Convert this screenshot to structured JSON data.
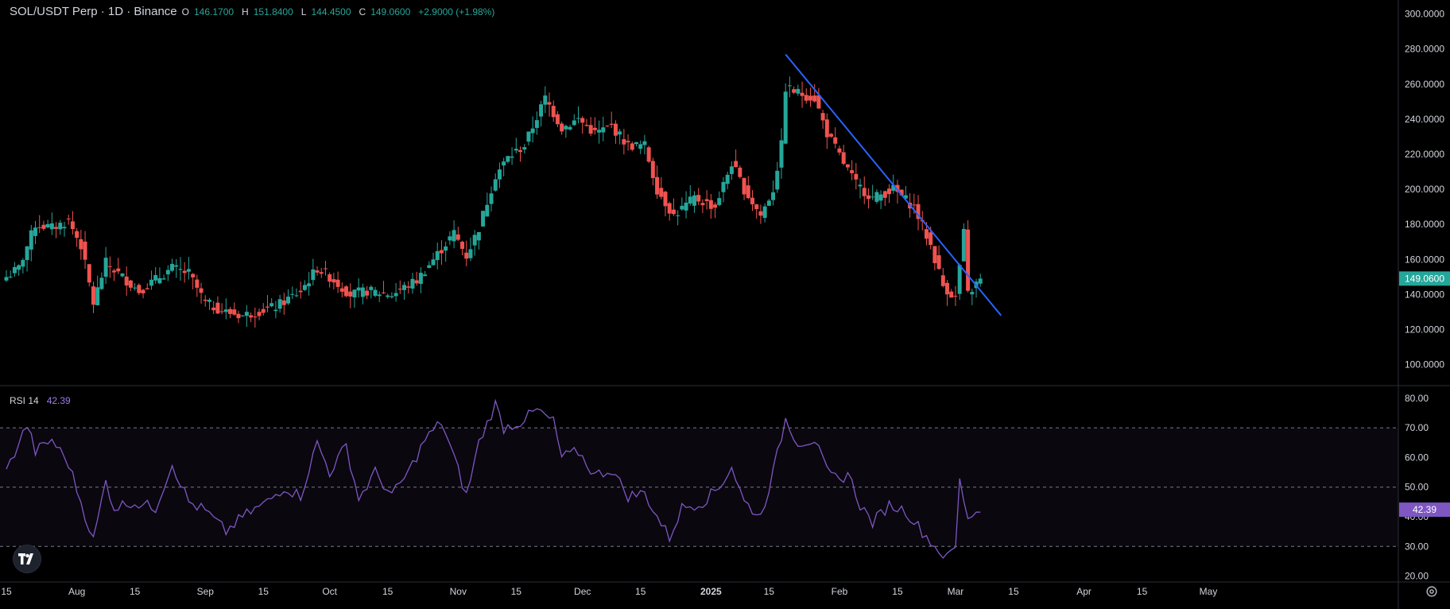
{
  "header": {
    "symbol": "SOL/USDT Perp · 1D · Binance",
    "open_label": "O",
    "open": "146.1700",
    "high_label": "H",
    "high": "151.8400",
    "low_label": "L",
    "low": "144.4500",
    "close_label": "C",
    "close": "149.0600",
    "change": "+2.9000 (+1.98%)"
  },
  "rsi": {
    "label": "RSI 14",
    "value": "42.39"
  },
  "price_badge": "149.0600",
  "rsi_badge": "42.39",
  "colors": {
    "up": "#26a69a",
    "down": "#ef5350",
    "rsi": "#7e57c2",
    "trendline": "#2962ff",
    "badge_price": "#26a69a",
    "badge_rsi": "#7e57c2"
  },
  "icons": {
    "logo": "tradingview-logo-icon",
    "settings": "gear-icon"
  },
  "chart_data": [
    {
      "type": "candlestick",
      "title": "SOL/USDT Perp · 1D · Binance",
      "ylim": [
        88,
        308
      ],
      "y_ticks": [
        "300.0000",
        "280.0000",
        "260.0000",
        "240.0000",
        "220.0000",
        "200.0000",
        "180.0000",
        "160.0000",
        "140.0000",
        "120.0000",
        "100.0000"
      ],
      "y_tick_values": [
        300,
        280,
        260,
        240,
        220,
        200,
        180,
        160,
        140,
        120,
        100
      ],
      "x_ticks": [
        "15",
        "Aug",
        "15",
        "Sep",
        "15",
        "Oct",
        "15",
        "Nov",
        "15",
        "Dec",
        "15",
        "2025",
        "15",
        "Feb",
        "15",
        "Mar",
        "15",
        "Apr",
        "15",
        "May"
      ],
      "x_tick_dates": [
        "2024-07-15",
        "2024-08-01",
        "2024-08-15",
        "2024-09-01",
        "2024-09-15",
        "2024-10-01",
        "2024-10-15",
        "2024-11-01",
        "2024-11-15",
        "2024-12-01",
        "2024-12-15",
        "2025-01-01",
        "2025-01-15",
        "2025-02-01",
        "2025-02-15",
        "2025-03-01",
        "2025-03-15",
        "2025-04-01",
        "2025-04-15",
        "2025-05-01"
      ],
      "x_range": [
        "2024-07-15",
        "2025-05-01"
      ],
      "series_anchors": [
        [
          "2024-07-15",
          150
        ],
        [
          "2024-07-18",
          155
        ],
        [
          "2024-07-22",
          180
        ],
        [
          "2024-07-26",
          178
        ],
        [
          "2024-07-30",
          182
        ],
        [
          "2024-08-02",
          168
        ],
        [
          "2024-08-05",
          135
        ],
        [
          "2024-08-08",
          158
        ],
        [
          "2024-08-12",
          150
        ],
        [
          "2024-08-16",
          142
        ],
        [
          "2024-08-24",
          155
        ],
        [
          "2024-08-28",
          152
        ],
        [
          "2024-09-01",
          135
        ],
        [
          "2024-09-06",
          130
        ],
        [
          "2024-09-10",
          128
        ],
        [
          "2024-09-18",
          133
        ],
        [
          "2024-09-24",
          142
        ],
        [
          "2024-09-28",
          155
        ],
        [
          "2024-10-01",
          150
        ],
        [
          "2024-10-06",
          140
        ],
        [
          "2024-10-10",
          142
        ],
        [
          "2024-10-16",
          140
        ],
        [
          "2024-10-22",
          148
        ],
        [
          "2024-10-27",
          163
        ],
        [
          "2024-10-31",
          175
        ],
        [
          "2024-11-03",
          162
        ],
        [
          "2024-11-06",
          178
        ],
        [
          "2024-11-10",
          208
        ],
        [
          "2024-11-13",
          218
        ],
        [
          "2024-11-17",
          225
        ],
        [
          "2024-11-22",
          252
        ],
        [
          "2024-11-26",
          235
        ],
        [
          "2024-11-30",
          240
        ],
        [
          "2024-12-04",
          232
        ],
        [
          "2024-12-08",
          236
        ],
        [
          "2024-12-12",
          225
        ],
        [
          "2024-12-16",
          225
        ],
        [
          "2024-12-19",
          200
        ],
        [
          "2024-12-23",
          185
        ],
        [
          "2024-12-28",
          195
        ],
        [
          "2025-01-02",
          190
        ],
        [
          "2025-01-06",
          215
        ],
        [
          "2025-01-09",
          200
        ],
        [
          "2025-01-13",
          185
        ],
        [
          "2025-01-16",
          200
        ],
        [
          "2025-01-18",
          225
        ],
        [
          "2025-01-19",
          258
        ],
        [
          "2025-01-22",
          255
        ],
        [
          "2025-01-26",
          252
        ],
        [
          "2025-01-29",
          232
        ],
        [
          "2025-02-02",
          215
        ],
        [
          "2025-02-05",
          203
        ],
        [
          "2025-02-09",
          195
        ],
        [
          "2025-02-14",
          200
        ],
        [
          "2025-02-19",
          190
        ],
        [
          "2025-02-23",
          168
        ],
        [
          "2025-02-26",
          145
        ],
        [
          "2025-03-01",
          138
        ],
        [
          "2025-03-03",
          175
        ],
        [
          "2025-03-04",
          140
        ],
        [
          "2025-03-07",
          149
        ]
      ],
      "last": {
        "open": 146.17,
        "high": 151.84,
        "low": 144.45,
        "close": 149.06
      },
      "trendline": {
        "start": [
          "2025-01-19",
          277
        ],
        "end": [
          "2025-03-12",
          128
        ]
      }
    },
    {
      "type": "line",
      "title": "RSI 14",
      "ylim": [
        18,
        84
      ],
      "y_ticks": [
        "80.00",
        "70.00",
        "60.00",
        "50.00",
        "40.00",
        "30.00",
        "20.00"
      ],
      "y_tick_values": [
        80,
        70,
        60,
        50,
        40,
        30,
        20
      ],
      "bands": [
        70,
        50,
        30
      ],
      "series_anchors": [
        [
          "2024-07-15",
          55
        ],
        [
          "2024-07-18",
          65
        ],
        [
          "2024-07-20",
          71
        ],
        [
          "2024-07-22",
          62
        ],
        [
          "2024-07-26",
          66
        ],
        [
          "2024-07-30",
          58
        ],
        [
          "2024-08-05",
          32
        ],
        [
          "2024-08-08",
          52
        ],
        [
          "2024-08-10",
          43
        ],
        [
          "2024-08-14",
          45
        ],
        [
          "2024-08-20",
          43
        ],
        [
          "2024-08-24",
          58
        ],
        [
          "2024-08-28",
          45
        ],
        [
          "2024-09-01",
          42
        ],
        [
          "2024-09-06",
          35
        ],
        [
          "2024-09-10",
          40
        ],
        [
          "2024-09-16",
          45
        ],
        [
          "2024-09-20",
          50
        ],
        [
          "2024-09-24",
          47
        ],
        [
          "2024-09-28",
          65
        ],
        [
          "2024-10-01",
          55
        ],
        [
          "2024-10-05",
          64
        ],
        [
          "2024-10-08",
          46
        ],
        [
          "2024-10-12",
          55
        ],
        [
          "2024-10-16",
          47
        ],
        [
          "2024-10-20",
          55
        ],
        [
          "2024-10-24",
          66
        ],
        [
          "2024-10-28",
          72
        ],
        [
          "2024-10-31",
          60
        ],
        [
          "2024-11-03",
          47
        ],
        [
          "2024-11-06",
          65
        ],
        [
          "2024-11-10",
          78
        ],
        [
          "2024-11-12",
          70
        ],
        [
          "2024-11-16",
          72
        ],
        [
          "2024-11-20",
          76
        ],
        [
          "2024-11-24",
          72
        ],
        [
          "2024-11-26",
          60
        ],
        [
          "2024-11-30",
          62
        ],
        [
          "2024-12-04",
          54
        ],
        [
          "2024-12-08",
          56
        ],
        [
          "2024-12-12",
          47
        ],
        [
          "2024-12-16",
          48
        ],
        [
          "2024-12-19",
          40
        ],
        [
          "2024-12-22",
          33
        ],
        [
          "2024-12-25",
          43
        ],
        [
          "2024-12-30",
          45
        ],
        [
          "2025-01-03",
          50
        ],
        [
          "2025-01-06",
          57
        ],
        [
          "2025-01-09",
          45
        ],
        [
          "2025-01-13",
          40
        ],
        [
          "2025-01-16",
          55
        ],
        [
          "2025-01-19",
          73
        ],
        [
          "2025-01-22",
          65
        ],
        [
          "2025-01-26",
          66
        ],
        [
          "2025-01-29",
          55
        ],
        [
          "2025-02-01",
          52
        ],
        [
          "2025-02-03",
          55
        ],
        [
          "2025-02-06",
          44
        ],
        [
          "2025-02-09",
          38
        ],
        [
          "2025-02-13",
          44
        ],
        [
          "2025-02-17",
          42
        ],
        [
          "2025-02-21",
          35
        ],
        [
          "2025-02-24",
          30
        ],
        [
          "2025-02-27",
          26
        ],
        [
          "2025-03-01",
          30
        ],
        [
          "2025-03-02",
          52
        ],
        [
          "2025-03-04",
          40
        ],
        [
          "2025-03-07",
          42.39
        ]
      ]
    }
  ]
}
